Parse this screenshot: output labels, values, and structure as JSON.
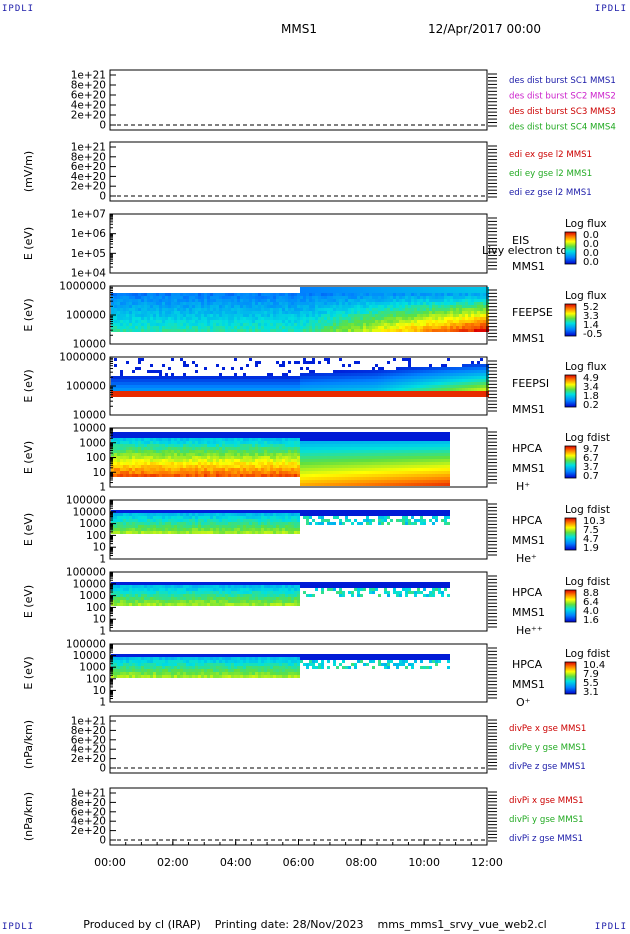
{
  "corner_label": "IPDLI",
  "header": {
    "spacecraft": "MMS1",
    "datetime": "12/Apr/2017 00:00"
  },
  "footer": {
    "producer": "Produced by cl (IRAP)",
    "printing": "Printing date: 28/Nov/2023",
    "file": "mms_mms1_srvy_vue_web2.cl"
  },
  "chart_data": {
    "type": "multi-panel",
    "x_axis": {
      "range": [
        "00:00",
        "12:00"
      ],
      "ticks": [
        "00:00",
        "02:00",
        "04:00",
        "06:00",
        "08:00",
        "10:00",
        "12:00"
      ]
    },
    "panels": [
      {
        "id": "p1",
        "kind": "line",
        "ylabel": "",
        "ticks": [
          "1e+21",
          "8e+20",
          "6e+20",
          "4e+20",
          "2e+20",
          "0"
        ],
        "labels": [
          {
            "text": "des dist burst SC1 MMS1",
            "color": "#1a1aa8"
          },
          {
            "text": "des dist burst SC2 MMS2",
            "color": "#cc22cc"
          },
          {
            "text": "des dist burst SC3 MMS3",
            "color": "#cc0000"
          },
          {
            "text": "des dist burst SC4 MMS4",
            "color": "#22aa22"
          }
        ]
      },
      {
        "id": "p2",
        "kind": "line",
        "ylabel": "(mV/m)",
        "ticks": [
          "1e+21",
          "8e+20",
          "6e+20",
          "4e+20",
          "2e+20",
          "0"
        ],
        "labels": [
          {
            "text": "edi ex gse l2 MMS1",
            "color": "#cc0000"
          },
          {
            "text": "edi ey gse l2 MMS1",
            "color": "#22aa22"
          },
          {
            "text": "edi ez gse l2 MMS1",
            "color": "#1a1aa8"
          }
        ]
      },
      {
        "id": "p3",
        "kind": "spectrogram",
        "ylabel": "E (eV)",
        "ticks": [
          "1e+07",
          "1e+06",
          "1e+05",
          "1e+04"
        ],
        "instrument": [
          "EIS",
          "MMS1"
        ],
        "overlay": "Livy electron to",
        "cbar": {
          "title": "Log flux",
          "ticks": [
            "0.0",
            "0.0",
            "0.0",
            "0.0"
          ]
        }
      },
      {
        "id": "p4",
        "kind": "spectrogram",
        "ylabel": "E (eV)",
        "ticks": [
          "1000000",
          "100000",
          "10000"
        ],
        "instrument": [
          "FEEPSE",
          "MMS1"
        ],
        "cbar": {
          "title": "Log flux",
          "ticks": [
            "5.2",
            "3.3",
            "1.4",
            "-0.5"
          ]
        }
      },
      {
        "id": "p5",
        "kind": "spectrogram",
        "ylabel": "E (eV)",
        "ticks": [
          "1000000",
          "100000",
          "10000"
        ],
        "instrument": [
          "FEEPSI",
          "MMS1"
        ],
        "cbar": {
          "title": "Log flux",
          "ticks": [
            "4.9",
            "3.4",
            "1.8",
            "0.2"
          ]
        }
      },
      {
        "id": "p6",
        "kind": "spectrogram",
        "ylabel": "E (eV)",
        "ticks": [
          "10000",
          "1000",
          "100",
          "10",
          "1"
        ],
        "instrument": [
          "HPCA",
          "MMS1"
        ],
        "species": "H⁺",
        "cbar": {
          "title": "Log fdist",
          "ticks": [
            "9.7",
            "6.7",
            "3.7",
            "0.7"
          ]
        }
      },
      {
        "id": "p7",
        "kind": "spectrogram",
        "ylabel": "E (eV)",
        "ticks": [
          "100000",
          "10000",
          "1000",
          "100",
          "10",
          "1"
        ],
        "instrument": [
          "HPCA",
          "MMS1"
        ],
        "species": "He⁺",
        "cbar": {
          "title": "Log fdist",
          "ticks": [
            "10.3",
            "7.5",
            "4.7",
            "1.9"
          ]
        }
      },
      {
        "id": "p8",
        "kind": "spectrogram",
        "ylabel": "E (eV)",
        "ticks": [
          "100000",
          "10000",
          "1000",
          "100",
          "10",
          "1"
        ],
        "instrument": [
          "HPCA",
          "MMS1"
        ],
        "species": "He⁺⁺",
        "cbar": {
          "title": "Log fdist",
          "ticks": [
            "8.8",
            "6.4",
            "4.0",
            "1.6"
          ]
        }
      },
      {
        "id": "p9",
        "kind": "spectrogram",
        "ylabel": "E (eV)",
        "ticks": [
          "100000",
          "10000",
          "1000",
          "100",
          "10",
          "1"
        ],
        "instrument": [
          "HPCA",
          "MMS1"
        ],
        "species": "O⁺",
        "cbar": {
          "title": "Log fdist",
          "ticks": [
            "10.4",
            "7.9",
            "5.5",
            "3.1"
          ]
        }
      },
      {
        "id": "p10",
        "kind": "line",
        "ylabel": "(nPa/km)",
        "ticks": [
          "1e+21",
          "8e+20",
          "6e+20",
          "4e+20",
          "2e+20",
          "0"
        ],
        "labels": [
          {
            "text": "divPe x gse MMS1",
            "color": "#cc0000"
          },
          {
            "text": "divPe y gse MMS1",
            "color": "#22aa22"
          },
          {
            "text": "divPe z gse MMS1",
            "color": "#1a1aa8"
          }
        ]
      },
      {
        "id": "p11",
        "kind": "line",
        "ylabel": "(nPa/km)",
        "ticks": [
          "1e+21",
          "8e+20",
          "6e+20",
          "4e+20",
          "2e+20",
          "0"
        ],
        "labels": [
          {
            "text": "divPi x gse MMS1",
            "color": "#cc0000"
          },
          {
            "text": "divPi y gse MMS1",
            "color": "#22aa22"
          },
          {
            "text": "divPi z gse MMS1",
            "color": "#1a1aa8"
          }
        ]
      }
    ]
  }
}
